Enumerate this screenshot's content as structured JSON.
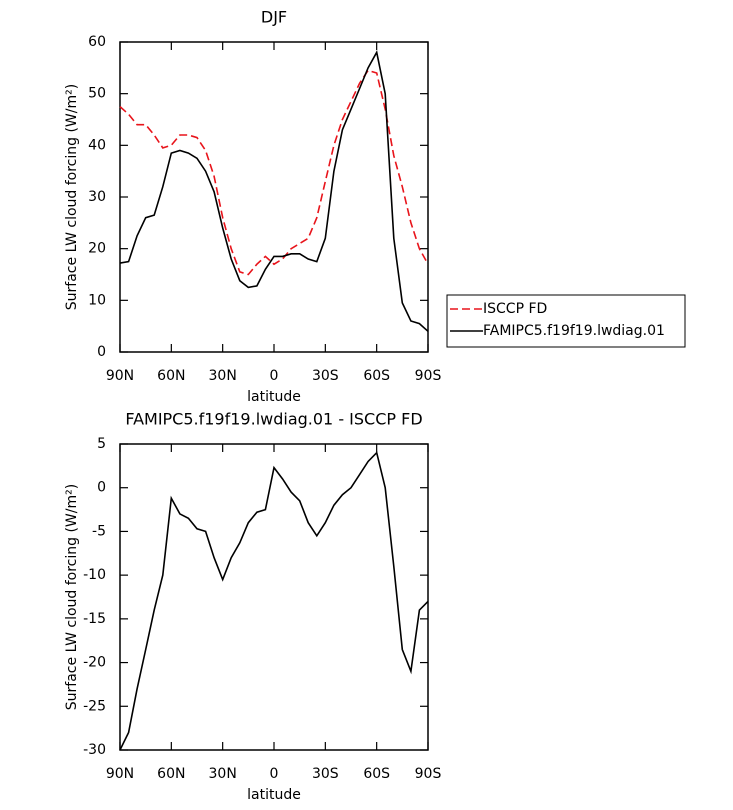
{
  "chart_data": [
    {
      "type": "line",
      "title": "DJF",
      "xlabel": "latitude",
      "ylabel": "Surface LW cloud forcing (W/m²)",
      "x": [
        90,
        85,
        80,
        75,
        70,
        65,
        60,
        55,
        50,
        45,
        40,
        35,
        30,
        25,
        20,
        15,
        10,
        5,
        0,
        -5,
        -10,
        -15,
        -20,
        -25,
        -30,
        -35,
        -40,
        -45,
        -50,
        -55,
        -60,
        -65,
        -70,
        -75,
        -80,
        -85,
        -90
      ],
      "xlim": [
        90,
        -90
      ],
      "xticks": [
        {
          "value": 90,
          "label": "90N"
        },
        {
          "value": 60,
          "label": "60N"
        },
        {
          "value": 30,
          "label": "30N"
        },
        0,
        {
          "value": -30,
          "label": "30S"
        },
        {
          "value": -60,
          "label": "60S"
        },
        {
          "value": -90,
          "label": "90S"
        }
      ],
      "ylim": [
        0,
        60
      ],
      "yticks": [
        0,
        10,
        20,
        30,
        40,
        50,
        60
      ],
      "legend": "outside-right",
      "series": [
        {
          "name": "ISCCP FD",
          "color": "#e8141b",
          "style": "dashed",
          "values": [
            47.5,
            46,
            44,
            44,
            42,
            39.5,
            40,
            42,
            42,
            41.5,
            39,
            34,
            26,
            20,
            15.5,
            15,
            17,
            18.5,
            17,
            18,
            20,
            21,
            22,
            26,
            33,
            40,
            45,
            48.5,
            52,
            54.5,
            54,
            47,
            38,
            32,
            25,
            20,
            17
          ]
        },
        {
          "name": "FAMIPC5.f19f19.lwdiag.01",
          "color": "#000000",
          "style": "solid",
          "values": [
            17.2,
            17.5,
            22.5,
            26,
            26.5,
            32,
            38.5,
            39,
            38.5,
            37.5,
            35,
            31,
            24,
            18,
            13.8,
            12.5,
            12.8,
            16,
            18.5,
            18.5,
            19,
            19,
            18,
            17.5,
            22,
            35,
            43,
            47,
            51,
            55,
            58,
            50,
            22,
            9.5,
            6,
            5.5,
            4
          ]
        }
      ]
    },
    {
      "type": "line",
      "title": "FAMIPC5.f19f19.lwdiag.01 - ISCCP FD",
      "xlabel": "latitude",
      "ylabel": "Surface LW cloud forcing (W/m²)",
      "x": [
        90,
        85,
        80,
        75,
        70,
        65,
        60,
        55,
        50,
        45,
        40,
        35,
        30,
        25,
        20,
        15,
        10,
        5,
        0,
        -5,
        -10,
        -15,
        -20,
        -25,
        -30,
        -35,
        -40,
        -45,
        -50,
        -55,
        -60,
        -65,
        -70,
        -75,
        -80,
        -85,
        -90
      ],
      "xlim": [
        90,
        -90
      ],
      "xticks": [
        {
          "value": 90,
          "label": "90N"
        },
        {
          "value": 60,
          "label": "60N"
        },
        {
          "value": 30,
          "label": "30N"
        },
        0,
        {
          "value": -30,
          "label": "30S"
        },
        {
          "value": -60,
          "label": "60S"
        },
        {
          "value": -90,
          "label": "90S"
        }
      ],
      "ylim": [
        -30,
        5
      ],
      "yticks": [
        -30,
        -25,
        -20,
        -15,
        -10,
        -5,
        0,
        5
      ],
      "series": [
        {
          "color": "#000000",
          "style": "solid",
          "values": [
            -30,
            -28,
            -23,
            -18.5,
            -14,
            -10,
            -1.2,
            -3,
            -3.5,
            -4.7,
            -5,
            -8,
            -10.5,
            -8,
            -6.3,
            -4,
            -2.8,
            -2.5,
            2.3,
            1,
            -0.5,
            -1.5,
            -4,
            -5.5,
            -4,
            -2,
            -0.8,
            0,
            1.5,
            3,
            4,
            0,
            -9,
            -18.5,
            -21,
            -14,
            -13
          ]
        }
      ]
    }
  ]
}
